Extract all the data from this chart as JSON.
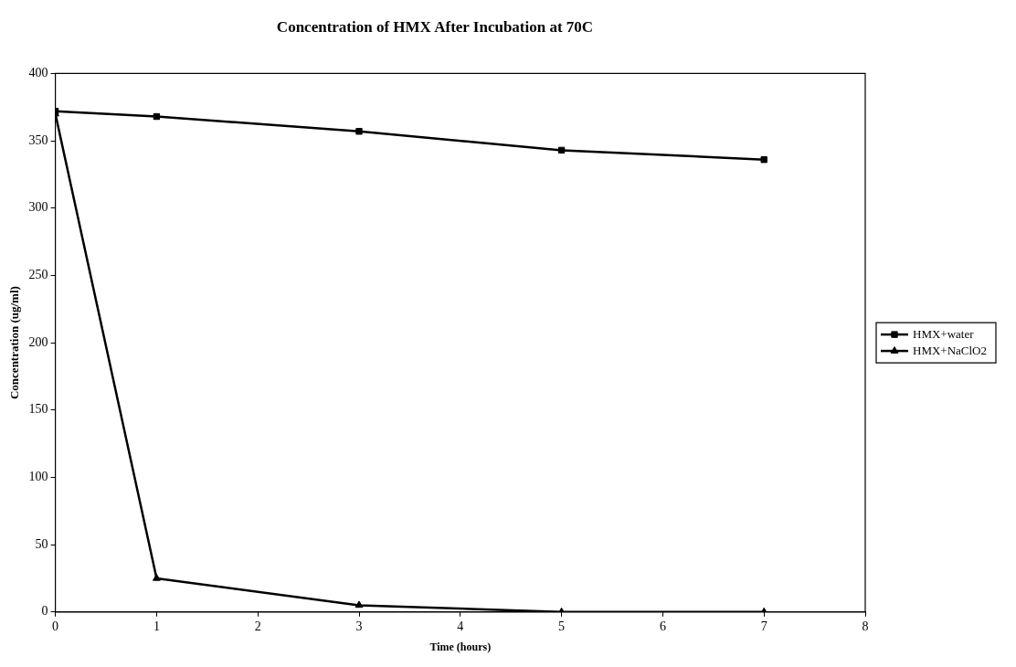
{
  "chart_data": {
    "type": "line",
    "title": "Concentration of HMX After Incubation at 70C",
    "xlabel": "Time (hours)",
    "ylabel": "Concentration (ug/ml)",
    "x": [
      0,
      1,
      3,
      5,
      7
    ],
    "series": [
      {
        "name": "HMX+water",
        "color": "#000000",
        "marker": "square",
        "values": [
          372,
          368,
          357,
          343,
          336
        ]
      },
      {
        "name": "HMX+NaClO2",
        "color": "#000000",
        "marker": "triangle",
        "values": [
          370,
          25,
          5,
          0,
          0
        ]
      }
    ],
    "xlim": [
      0,
      8
    ],
    "xticks": [
      0,
      1,
      2,
      3,
      4,
      5,
      6,
      7,
      8
    ],
    "ylim": [
      0,
      400
    ],
    "yticks": [
      0,
      50,
      100,
      150,
      200,
      250,
      300,
      350,
      400
    ],
    "grid": false,
    "legend": "right",
    "line_style": "solid"
  }
}
